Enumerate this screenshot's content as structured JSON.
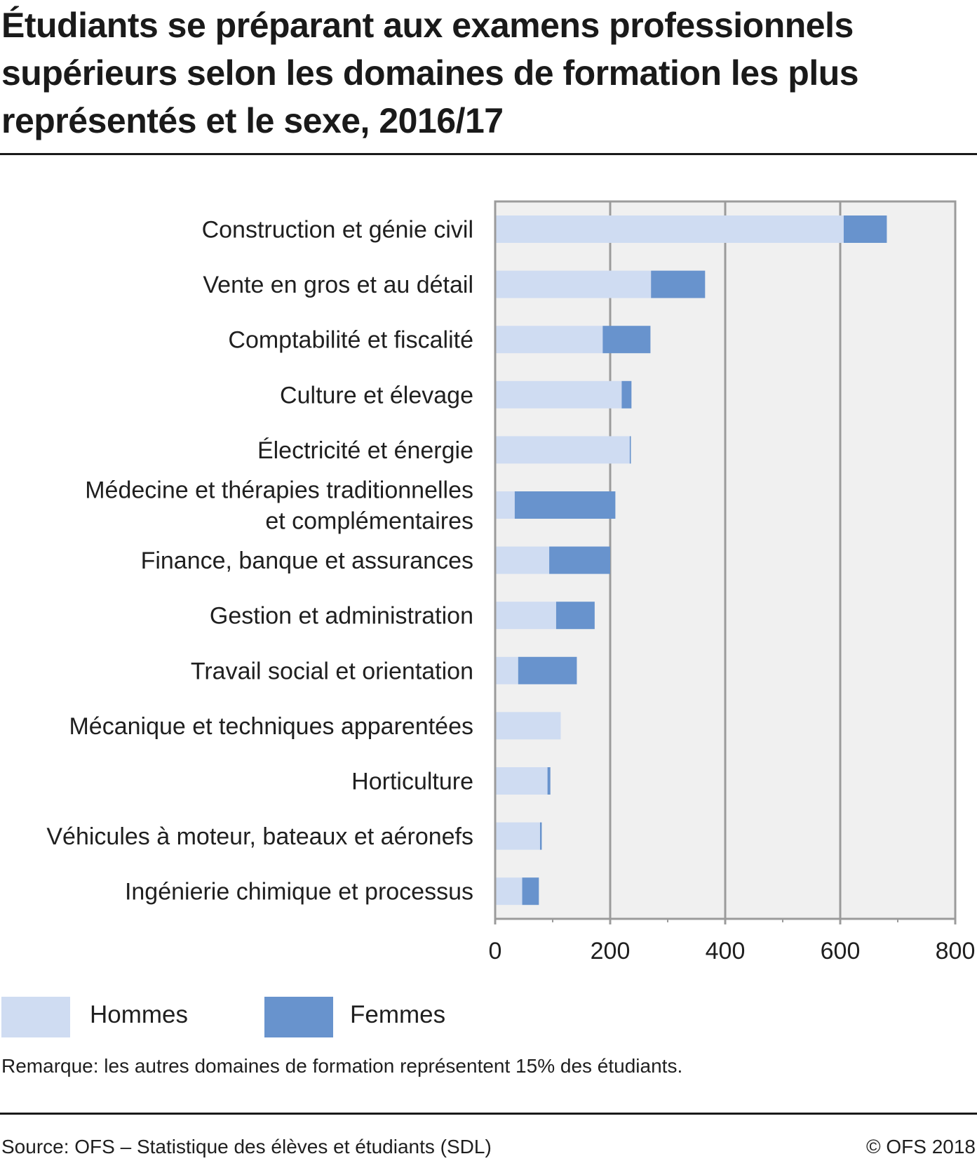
{
  "chart_data": {
    "type": "bar",
    "orientation": "horizontal",
    "stacked": true,
    "title": "Étudiants se préparant aux examens professionnels supérieurs selon les domaines de formation les plus représentés et le sexe, 2016/17",
    "title_lines": [
      "Étudiants se préparant aux examens professionnels",
      "supérieurs selon les domaines de formation les plus",
      "représentés et le sexe, 2016/17"
    ],
    "xlabel": "",
    "ylabel": "",
    "xlim": [
      0,
      800
    ],
    "x_ticks": [
      0,
      200,
      400,
      600,
      800
    ],
    "x_minor_ticks": [
      100,
      300,
      500,
      700
    ],
    "grid": true,
    "legend_position": "bottom-left",
    "categories": [
      [
        "Construction et génie civil"
      ],
      [
        "Vente en gros et au détail"
      ],
      [
        "Comptabilité et fiscalité"
      ],
      [
        "Culture et élevage"
      ],
      [
        "Électricité et énergie"
      ],
      [
        "Médecine et thérapies traditionnelles",
        "et complémentaires"
      ],
      [
        "Finance, banque et assurances"
      ],
      [
        "Gestion et administration"
      ],
      [
        "Travail social et orientation"
      ],
      [
        "Mécanique et techniques apparentées"
      ],
      [
        "Horticulture"
      ],
      [
        "Véhicules à moteur, bateaux et aéronefs"
      ],
      [
        "Ingénierie chimique et processus"
      ]
    ],
    "series": [
      {
        "name": "Hommes",
        "color": "#cfdcf2",
        "values": [
          606,
          271,
          187,
          220,
          234,
          34,
          94,
          106,
          40,
          114,
          91,
          78,
          47
        ]
      },
      {
        "name": "Femmes",
        "color": "#6893cd",
        "values": [
          75,
          94,
          83,
          17,
          2,
          175,
          106,
          67,
          102,
          0,
          5,
          3,
          29
        ]
      }
    ],
    "colors": {
      "plot_background": "#f0f0f0",
      "grid": "#9b9b9b",
      "frame": "#9b9b9b"
    }
  },
  "legend": {
    "items": [
      {
        "label": "Hommes",
        "color": "#cfdcf2"
      },
      {
        "label": "Femmes",
        "color": "#6893cd"
      }
    ]
  },
  "footer": {
    "note": "Remarque: les autres domaines de formation représentent 15% des étudiants.",
    "source": "Source: OFS – Statistique des élèves et étudiants (SDL)",
    "copyright": "© OFS 2018"
  }
}
